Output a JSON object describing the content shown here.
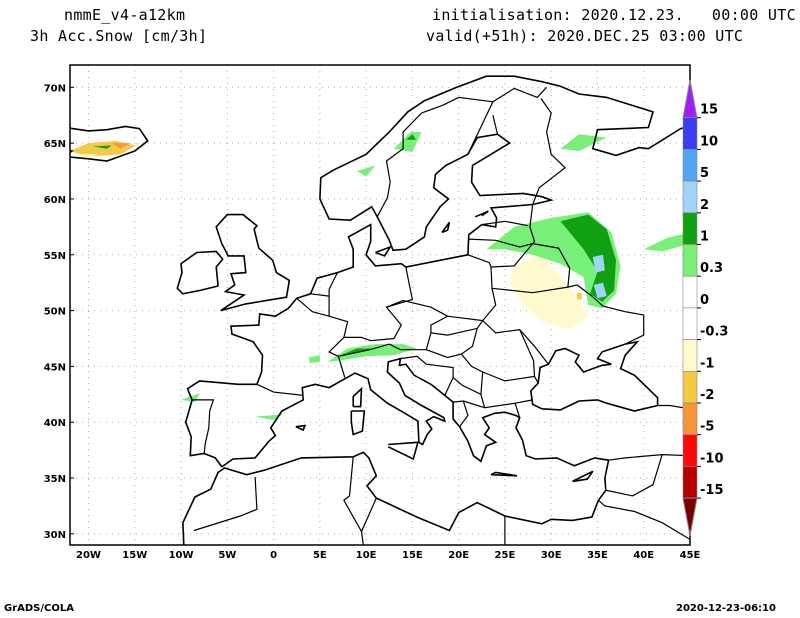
{
  "header": {
    "model": "nmmE_v4-a12km",
    "variable": "3h Acc.Snow [cm/3h]",
    "init": "initialisation: 2020.12.23.   00:00 UTC",
    "valid": "valid(+51h): 2020.DEC.25 03:00 UTC"
  },
  "map": {
    "lon_range": [
      -22,
      45
    ],
    "lat_range": [
      29,
      72
    ],
    "lat_labels": [
      {
        "lat": 70,
        "label": "70N"
      },
      {
        "lat": 65,
        "label": "65N"
      },
      {
        "lat": 60,
        "label": "60N"
      },
      {
        "lat": 55,
        "label": "55N"
      },
      {
        "lat": 50,
        "label": "50N"
      },
      {
        "lat": 45,
        "label": "45N"
      },
      {
        "lat": 40,
        "label": "40N"
      },
      {
        "lat": 35,
        "label": "35N"
      },
      {
        "lat": 30,
        "label": "30N"
      }
    ],
    "lon_labels": [
      {
        "lon": -20,
        "label": "20W"
      },
      {
        "lon": -15,
        "label": "15W"
      },
      {
        "lon": -10,
        "label": "10W"
      },
      {
        "lon": -5,
        "label": "5W"
      },
      {
        "lon": 0,
        "label": "0"
      },
      {
        "lon": 5,
        "label": "5E"
      },
      {
        "lon": 10,
        "label": "10E"
      },
      {
        "lon": 15,
        "label": "15E"
      },
      {
        "lon": 20,
        "label": "20E"
      },
      {
        "lon": 25,
        "label": "25E"
      },
      {
        "lon": 30,
        "label": "30E"
      },
      {
        "lon": 35,
        "label": "35E"
      },
      {
        "lon": 40,
        "label": "40E"
      },
      {
        "lon": 45,
        "label": "45E"
      }
    ]
  },
  "legend": {
    "labels": [
      "15",
      "10",
      "5",
      "2",
      "1",
      "0.3",
      "0",
      "-0.3",
      "-1",
      "-2",
      "-5",
      "-10",
      "-15"
    ],
    "colors": [
      "#a020f0",
      "#3c3cf0",
      "#50a5f5",
      "#a0d2fa",
      "#11a011",
      "#78f078",
      "#ffffff",
      "#ffffff",
      "#fffacd",
      "#f5c846",
      "#f5963c",
      "#fa0a0a",
      "#b40000",
      "#780000"
    ]
  },
  "footer": {
    "left": "GrADS/COLA",
    "right": "2020-12-23-06:10"
  }
}
